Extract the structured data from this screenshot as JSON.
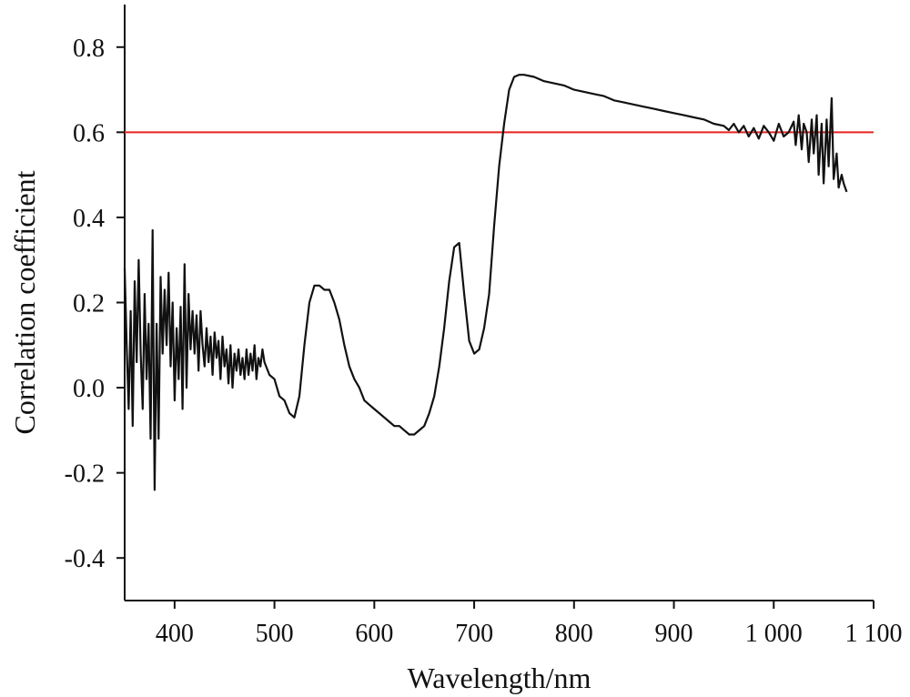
{
  "chart_data": {
    "type": "line",
    "title": "",
    "xlabel": "Wavelength/nm",
    "ylabel": "Correlation coefficient",
    "xlim": [
      350,
      1100
    ],
    "ylim": [
      -0.5,
      0.9
    ],
    "x_ticks": [
      400,
      500,
      600,
      700,
      800,
      900,
      1000,
      1100
    ],
    "x_tick_labels": [
      "400",
      "500",
      "600",
      "700",
      "800",
      "900",
      "1 000",
      "1 100"
    ],
    "y_ticks": [
      -0.4,
      -0.2,
      0.0,
      0.2,
      0.4,
      0.6,
      0.8
    ],
    "y_tick_labels": [
      "-0.4",
      "-0.2",
      "0.0",
      "0.2",
      "0.4",
      "0.6",
      "0.8"
    ],
    "grid": false,
    "reference_lines": [
      {
        "axis": "y",
        "value": 0.6,
        "color": "#e8231f"
      }
    ],
    "series": [
      {
        "color": "#111111",
        "x": [
          350,
          352,
          354,
          356,
          358,
          360,
          362,
          364,
          366,
          368,
          370,
          372,
          374,
          376,
          378,
          380,
          382,
          384,
          386,
          388,
          390,
          392,
          394,
          396,
          398,
          400,
          402,
          404,
          406,
          408,
          410,
          412,
          414,
          416,
          418,
          420,
          422,
          424,
          426,
          428,
          430,
          432,
          434,
          436,
          438,
          440,
          442,
          444,
          446,
          448,
          450,
          452,
          454,
          456,
          458,
          460,
          462,
          464,
          466,
          468,
          470,
          472,
          474,
          476,
          478,
          480,
          482,
          484,
          486,
          488,
          490,
          495,
          500,
          505,
          510,
          515,
          520,
          525,
          530,
          535,
          540,
          545,
          550,
          555,
          560,
          565,
          570,
          575,
          580,
          585,
          590,
          595,
          600,
          605,
          610,
          615,
          620,
          625,
          630,
          635,
          640,
          645,
          650,
          655,
          660,
          665,
          670,
          675,
          680,
          685,
          690,
          695,
          700,
          705,
          710,
          715,
          720,
          725,
          730,
          735,
          740,
          745,
          750,
          760,
          770,
          780,
          790,
          800,
          810,
          820,
          830,
          840,
          850,
          860,
          870,
          880,
          890,
          900,
          910,
          920,
          930,
          940,
          950,
          955,
          960,
          965,
          970,
          975,
          980,
          985,
          990,
          995,
          1000,
          1005,
          1010,
          1015,
          1020,
          1022,
          1025,
          1028,
          1030,
          1033,
          1035,
          1038,
          1040,
          1043,
          1045,
          1048,
          1050,
          1053,
          1055,
          1058,
          1060,
          1063,
          1065,
          1068,
          1070,
          1073
        ],
        "y": [
          0.28,
          0.1,
          -0.05,
          0.18,
          -0.09,
          0.25,
          0.06,
          0.3,
          0.08,
          -0.05,
          0.22,
          0.02,
          0.15,
          -0.12,
          0.37,
          -0.24,
          0.15,
          -0.12,
          0.26,
          0.08,
          0.23,
          0.1,
          0.27,
          0.05,
          0.2,
          -0.03,
          0.14,
          0.02,
          0.19,
          -0.05,
          0.29,
          0.0,
          0.22,
          0.09,
          0.18,
          0.08,
          0.17,
          0.04,
          0.18,
          0.1,
          0.05,
          0.14,
          0.06,
          0.12,
          0.03,
          0.13,
          0.07,
          0.11,
          0.02,
          0.12,
          0.05,
          0.09,
          0.01,
          0.1,
          0.0,
          0.08,
          0.04,
          0.09,
          0.03,
          0.07,
          0.02,
          0.09,
          0.03,
          0.08,
          0.04,
          0.1,
          0.02,
          0.07,
          0.05,
          0.09,
          0.06,
          0.03,
          0.02,
          -0.02,
          -0.03,
          -0.06,
          -0.07,
          -0.02,
          0.1,
          0.2,
          0.24,
          0.24,
          0.23,
          0.23,
          0.2,
          0.16,
          0.1,
          0.05,
          0.02,
          0.0,
          -0.03,
          -0.04,
          -0.05,
          -0.06,
          -0.07,
          -0.08,
          -0.09,
          -0.09,
          -0.1,
          -0.11,
          -0.11,
          -0.1,
          -0.09,
          -0.06,
          -0.02,
          0.05,
          0.14,
          0.25,
          0.33,
          0.34,
          0.22,
          0.11,
          0.08,
          0.09,
          0.14,
          0.22,
          0.38,
          0.52,
          0.62,
          0.7,
          0.73,
          0.735,
          0.735,
          0.73,
          0.72,
          0.715,
          0.71,
          0.7,
          0.695,
          0.69,
          0.685,
          0.675,
          0.67,
          0.665,
          0.66,
          0.655,
          0.65,
          0.645,
          0.64,
          0.635,
          0.63,
          0.62,
          0.615,
          0.605,
          0.62,
          0.6,
          0.615,
          0.59,
          0.61,
          0.585,
          0.615,
          0.6,
          0.58,
          0.62,
          0.59,
          0.6,
          0.625,
          0.57,
          0.64,
          0.56,
          0.62,
          0.6,
          0.53,
          0.63,
          0.55,
          0.64,
          0.5,
          0.62,
          0.48,
          0.63,
          0.52,
          0.68,
          0.49,
          0.55,
          0.47,
          0.5,
          0.48,
          0.46
        ]
      }
    ]
  }
}
